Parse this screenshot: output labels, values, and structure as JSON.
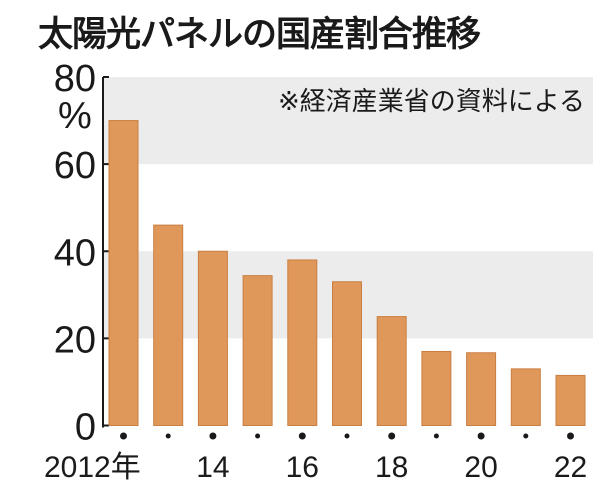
{
  "title": "太陽光パネルの国産割合推移",
  "chart_data": {
    "type": "bar",
    "title": "太陽光パネルの国産割合推移",
    "source_note": "※経済産業省の資料による",
    "ylabel": "%",
    "ylim": [
      0,
      80
    ],
    "yticks": [
      "0",
      "20",
      "40",
      "60",
      "80"
    ],
    "categories": [
      "2012",
      "2013",
      "2014",
      "2015",
      "2016",
      "2017",
      "2018",
      "2019",
      "2020",
      "2021",
      "2022"
    ],
    "xtick_labels": [
      {
        "year": "2012",
        "label": "2012年"
      },
      {
        "year": "2014",
        "label": "14"
      },
      {
        "year": "2016",
        "label": "16"
      },
      {
        "year": "2018",
        "label": "18"
      },
      {
        "year": "2020",
        "label": "20"
      },
      {
        "year": "2022",
        "label": "22"
      }
    ],
    "values": [
      70,
      46,
      40,
      34.4,
      38,
      33,
      25,
      17,
      16.7,
      13,
      11.5
    ],
    "bar_color": "#e0975a",
    "band_color": "#ececec",
    "grid": "alternating bands"
  }
}
